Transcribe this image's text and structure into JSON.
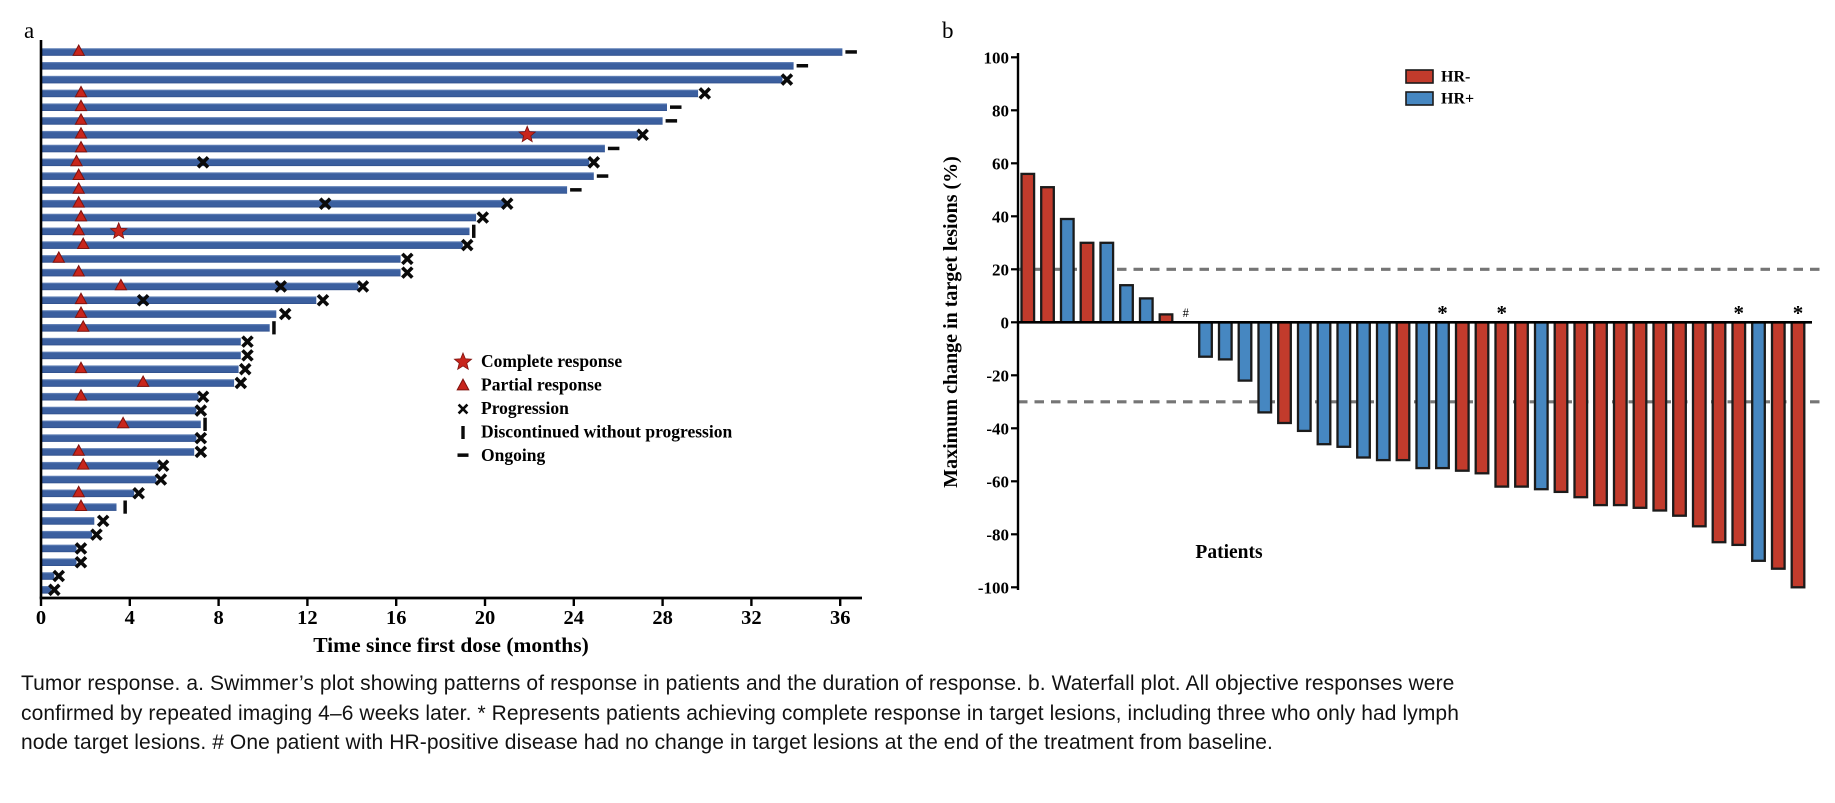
{
  "caption": {
    "line1": "Tumor response. a. Swimmer’s plot showing patterns of response in patients and the duration of response. b. Waterfall plot. All objective responses were",
    "line2": "confirmed by repeated imaging 4–6 weeks later. * Represents patients achieving complete response in target lesions, including three who only had lymph",
    "line3": "node target lesions. # One patient with HR-positive disease had no change in target lesions at the end of the treatment from baseline."
  },
  "chart_data": [
    {
      "type": "swimmer",
      "panel_label": "a",
      "x_axis": {
        "title": "Time since first dose (months)",
        "ticks": [
          0,
          4,
          8,
          12,
          16,
          20,
          24,
          28,
          32,
          36
        ],
        "range": [
          0,
          37
        ],
        "unit": "months"
      },
      "legend": [
        {
          "marker": "star",
          "label": "Complete response"
        },
        {
          "marker": "triangle",
          "label": "Partial response"
        },
        {
          "marker": "x",
          "label": "Progression"
        },
        {
          "marker": "bar",
          "label": "Discontinued without progression"
        },
        {
          "marker": "dash",
          "label": "Ongoing"
        }
      ],
      "colors": {
        "bar": "#3B5F9F",
        "bar_top": "#7390C1",
        "bar_bottom": "#2F4E8A",
        "response_red": "#C8251C",
        "response_red_edge": "#7E120E",
        "marker_black": "#0A0A0A"
      },
      "patients": [
        {
          "months": 36.1,
          "partial_response": 1.7,
          "ongoing": true
        },
        {
          "months": 33.9,
          "ongoing": true
        },
        {
          "months": 33.4,
          "progression": [
            33.6
          ]
        },
        {
          "months": 29.6,
          "partial_response": 1.8,
          "progression": [
            29.9
          ]
        },
        {
          "months": 28.2,
          "partial_response": 1.8,
          "ongoing": true
        },
        {
          "months": 28.0,
          "partial_response": 1.8,
          "ongoing": true
        },
        {
          "months": 26.9,
          "partial_response": 1.8,
          "complete_response": 21.9,
          "progression": [
            27.1
          ]
        },
        {
          "months": 25.4,
          "partial_response": 1.8,
          "ongoing": true
        },
        {
          "months": 24.7,
          "partial_response": 1.6,
          "progression": [
            7.3,
            24.9
          ]
        },
        {
          "months": 24.9,
          "partial_response": 1.7,
          "ongoing": true
        },
        {
          "months": 23.7,
          "partial_response": 1.7,
          "ongoing": true
        },
        {
          "months": 20.9,
          "partial_response": 1.7,
          "progression": [
            12.8,
            21.0
          ]
        },
        {
          "months": 19.6,
          "partial_response": 1.8,
          "progression": [
            19.9
          ]
        },
        {
          "months": 19.3,
          "partial_response": 1.7,
          "complete_response": 3.5,
          "discontinued": 19.3
        },
        {
          "months": 19.0,
          "partial_response": 1.9,
          "progression": [
            19.2
          ]
        },
        {
          "months": 16.2,
          "partial_response": 0.8,
          "progression": [
            16.5
          ]
        },
        {
          "months": 16.2,
          "partial_response": 1.7,
          "progression": [
            16.5
          ]
        },
        {
          "months": 14.3,
          "partial_response": 3.6,
          "progression": [
            10.8,
            14.5
          ]
        },
        {
          "months": 12.4,
          "partial_response": 1.8,
          "progression": [
            4.6,
            12.7
          ]
        },
        {
          "months": 10.6,
          "partial_response": 1.8,
          "progression": [
            11.0
          ]
        },
        {
          "months": 10.3,
          "partial_response": 1.9,
          "discontinued": 10.3
        },
        {
          "months": 9.0,
          "progression": [
            9.3
          ]
        },
        {
          "months": 9.0,
          "progression": [
            9.3
          ]
        },
        {
          "months": 8.9,
          "partial_response": 1.8,
          "progression": [
            9.2
          ]
        },
        {
          "months": 8.7,
          "partial_response": 4.6,
          "progression": [
            9.0
          ]
        },
        {
          "months": 7.1,
          "partial_response": 1.8,
          "progression": [
            7.3
          ]
        },
        {
          "months": 7.0,
          "progression": [
            7.2
          ]
        },
        {
          "months": 7.2,
          "partial_response": 3.7,
          "discontinued": 7.2
        },
        {
          "months": 7.0,
          "progression": [
            7.2
          ]
        },
        {
          "months": 6.9,
          "partial_response": 1.7,
          "progression": [
            7.2
          ]
        },
        {
          "months": 5.3,
          "partial_response": 1.9,
          "progression": [
            5.5
          ]
        },
        {
          "months": 5.2,
          "progression": [
            5.4
          ]
        },
        {
          "months": 4.2,
          "partial_response": 1.7,
          "progression": [
            4.4
          ]
        },
        {
          "months": 3.4,
          "partial_response": 1.8,
          "discontinued": 3.6
        },
        {
          "months": 2.4,
          "progression": [
            2.8
          ]
        },
        {
          "months": 2.3,
          "progression": [
            2.5
          ]
        },
        {
          "months": 1.6,
          "progression": [
            1.8
          ]
        },
        {
          "months": 1.6,
          "progression": [
            1.8
          ]
        },
        {
          "months": 0.6,
          "progression": [
            0.8
          ]
        },
        {
          "months": 0.45,
          "progression": [
            0.6
          ]
        }
      ]
    },
    {
      "type": "waterfall-bar",
      "panel_label": "b",
      "y_axis": {
        "title": "Maximum change in target lesions (%)",
        "ticks": [
          100,
          80,
          60,
          40,
          20,
          0,
          -20,
          -40,
          -60,
          -80,
          -100
        ],
        "range": [
          -100,
          100
        ]
      },
      "x_axis_title": "Patients",
      "reference_lines": [
        20,
        -30
      ],
      "legend": [
        {
          "label": "HR-",
          "color": "#C23B2C"
        },
        {
          "label": "HR+",
          "color": "#4687C1"
        }
      ],
      "colors": {
        "HR-": "#C23B2C",
        "HR+": "#4687C1",
        "outline": "#1B1B1B",
        "dashed": "#757575"
      },
      "bars": [
        {
          "value": 56,
          "group": "HR-"
        },
        {
          "value": 51,
          "group": "HR-"
        },
        {
          "value": 39,
          "group": "HR+"
        },
        {
          "value": 30,
          "group": "HR-"
        },
        {
          "value": 30,
          "group": "HR+"
        },
        {
          "value": 14,
          "group": "HR+"
        },
        {
          "value": 9,
          "group": "HR+"
        },
        {
          "value": 3,
          "group": "HR-"
        },
        {
          "value": 0,
          "group": "HR+",
          "mark": "#"
        },
        {
          "value": -13,
          "group": "HR+"
        },
        {
          "value": -14,
          "group": "HR+"
        },
        {
          "value": -22,
          "group": "HR+"
        },
        {
          "value": -34,
          "group": "HR+"
        },
        {
          "value": -38,
          "group": "HR-"
        },
        {
          "value": -41,
          "group": "HR+"
        },
        {
          "value": -46,
          "group": "HR+"
        },
        {
          "value": -47,
          "group": "HR+"
        },
        {
          "value": -51,
          "group": "HR+"
        },
        {
          "value": -52,
          "group": "HR+"
        },
        {
          "value": -52,
          "group": "HR-"
        },
        {
          "value": -55,
          "group": "HR+"
        },
        {
          "value": -55,
          "group": "HR+",
          "mark": "*"
        },
        {
          "value": -56,
          "group": "HR-"
        },
        {
          "value": -57,
          "group": "HR-"
        },
        {
          "value": -62,
          "group": "HR-",
          "mark": "*"
        },
        {
          "value": -62,
          "group": "HR-"
        },
        {
          "value": -63,
          "group": "HR+"
        },
        {
          "value": -64,
          "group": "HR-"
        },
        {
          "value": -66,
          "group": "HR-"
        },
        {
          "value": -69,
          "group": "HR-"
        },
        {
          "value": -69,
          "group": "HR-"
        },
        {
          "value": -70,
          "group": "HR-"
        },
        {
          "value": -71,
          "group": "HR-"
        },
        {
          "value": -73,
          "group": "HR-"
        },
        {
          "value": -77,
          "group": "HR-"
        },
        {
          "value": -83,
          "group": "HR-"
        },
        {
          "value": -84,
          "group": "HR-",
          "mark": "*"
        },
        {
          "value": -90,
          "group": "HR+"
        },
        {
          "value": -93,
          "group": "HR-"
        },
        {
          "value": -100,
          "group": "HR-",
          "mark": "*"
        }
      ]
    }
  ]
}
